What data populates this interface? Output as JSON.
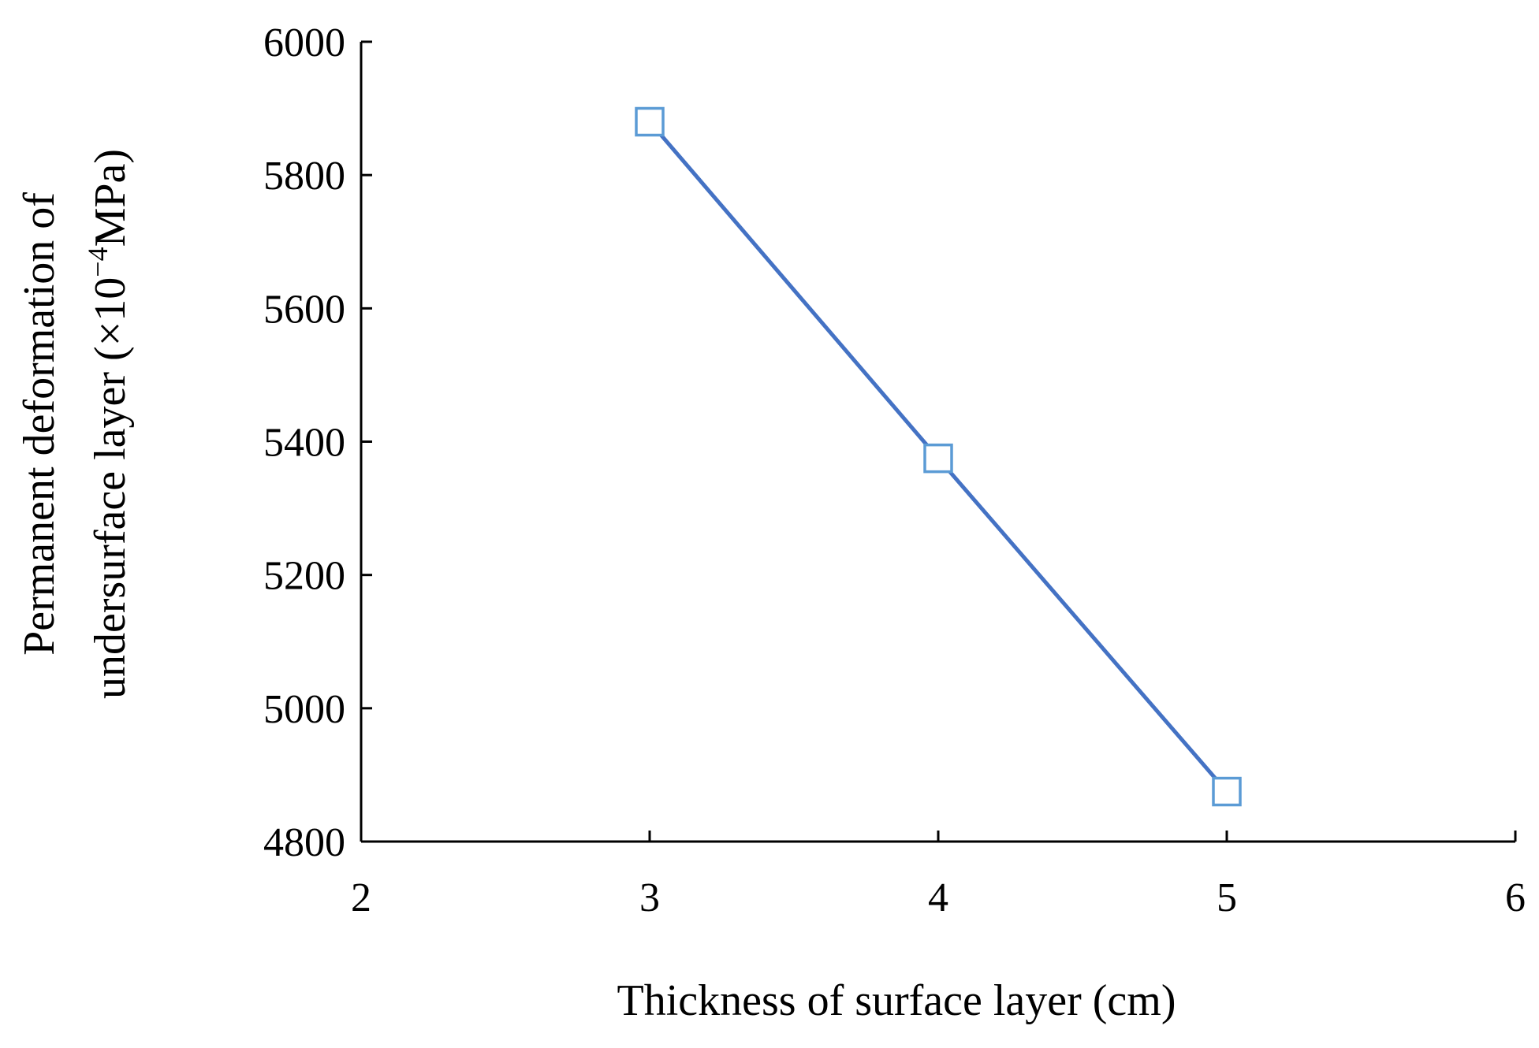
{
  "chart_data": {
    "type": "line",
    "title": "",
    "xlabel": "Thickness of surface layer (cm)",
    "ylabel_line1": "Permanent deformation of",
    "ylabel_line2_prefix": "undersurface layer (×10",
    "ylabel_line2_exponent": "−4",
    "ylabel_line2_suffix": "MPa)",
    "xlim": [
      2,
      6
    ],
    "ylim": [
      4800,
      6000
    ],
    "x_ticks": [
      2,
      3,
      4,
      5,
      6
    ],
    "y_ticks": [
      4800,
      5000,
      5200,
      5400,
      5600,
      5800,
      6000
    ],
    "grid": false,
    "legend": "none",
    "series": [
      {
        "x": [
          3,
          4,
          5
        ],
        "y": [
          5880,
          5375,
          4875
        ],
        "line_color": "#4472C4",
        "marker": "square-open",
        "marker_color": "#5B9BD5"
      }
    ]
  }
}
